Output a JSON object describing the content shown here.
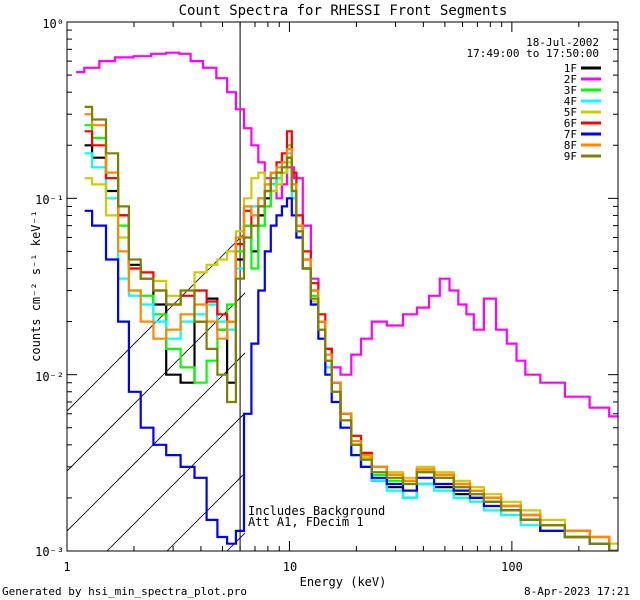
{
  "chart_data": {
    "type": "line",
    "title": "Count Spectra for RHESSI Front Segments",
    "xlabel": "Energy (keV)",
    "ylabel": "counts cm⁻² s⁻¹ keV⁻¹",
    "xscale": "log",
    "yscale": "log",
    "xlim": [
      1,
      300
    ],
    "ylim": [
      0.001,
      1
    ],
    "x_tick_labels": [
      "1",
      "10",
      "100"
    ],
    "y_tick_labels": [
      "10⁻³",
      "10⁻²",
      "10⁻¹",
      "10⁰"
    ],
    "legend_position": "top-right",
    "date": "18-Jul-2002",
    "time_range": "17:49:00 to 17:50:00",
    "annotations": [
      "Includes Background",
      "Att A1, FDecim 1"
    ],
    "hatched_region_max_energy": 6,
    "series": [
      {
        "name": "1F",
        "color": "#000000",
        "x": [
          1.2,
          1.4,
          1.6,
          1.8,
          2.0,
          2.3,
          2.6,
          3.0,
          3.5,
          4.0,
          4.5,
          5.0,
          5.5,
          6.0,
          6.5,
          7.0,
          7.5,
          8.0,
          8.5,
          9.0,
          9.5,
          10.0,
          10.5,
          11,
          12,
          13,
          14,
          15,
          16,
          18,
          20,
          22,
          25,
          30,
          35,
          40,
          50,
          60,
          70,
          80,
          100,
          120,
          150,
          200,
          250,
          300
        ],
        "y": [
          0.2,
          0.17,
          0.11,
          0.08,
          0.042,
          0.035,
          0.025,
          0.01,
          0.009,
          0.02,
          0.027,
          0.018,
          0.009,
          0.045,
          0.07,
          0.05,
          0.08,
          0.1,
          0.12,
          0.13,
          0.14,
          0.17,
          0.11,
          0.07,
          0.045,
          0.03,
          0.02,
          0.014,
          0.009,
          0.006,
          0.004,
          0.003,
          0.0025,
          0.0023,
          0.002,
          0.0024,
          0.0023,
          0.0021,
          0.002,
          0.0019,
          0.0017,
          0.0015,
          0.0013,
          0.0012,
          0.0011,
          0.001
        ]
      },
      {
        "name": "2F",
        "color": "#ff00ff",
        "x": [
          1.1,
          1.3,
          1.5,
          1.8,
          2.2,
          2.6,
          3.0,
          3.4,
          3.8,
          4.4,
          5.0,
          5.5,
          6.0,
          6.5,
          7.0,
          7.5,
          8.0,
          8.5,
          9.0,
          9.5,
          10.0,
          11,
          12,
          13,
          14,
          15,
          16,
          18,
          20,
          22,
          25,
          30,
          35,
          40,
          45,
          50,
          55,
          60,
          65,
          70,
          80,
          90,
          100,
          110,
          120,
          150,
          200,
          250,
          300
        ],
        "y": [
          0.52,
          0.55,
          0.6,
          0.63,
          0.64,
          0.66,
          0.67,
          0.66,
          0.6,
          0.55,
          0.48,
          0.4,
          0.32,
          0.25,
          0.2,
          0.16,
          0.13,
          0.11,
          0.1,
          0.12,
          0.15,
          0.13,
          0.07,
          0.035,
          0.02,
          0.014,
          0.011,
          0.01,
          0.013,
          0.016,
          0.02,
          0.019,
          0.022,
          0.024,
          0.028,
          0.035,
          0.03,
          0.025,
          0.022,
          0.018,
          0.027,
          0.018,
          0.015,
          0.012,
          0.01,
          0.009,
          0.0075,
          0.0065,
          0.0058
        ]
      },
      {
        "name": "3F",
        "color": "#00ff00",
        "x": [
          1.2,
          1.4,
          1.6,
          1.8,
          2.0,
          2.3,
          2.6,
          3.0,
          3.5,
          4.0,
          4.5,
          5.0,
          5.5,
          6.0,
          6.5,
          7.0,
          7.5,
          8.0,
          8.5,
          9.0,
          9.5,
          10.0,
          10.5,
          11,
          12,
          13,
          14,
          15,
          16,
          18,
          20,
          22,
          25,
          30,
          35,
          40,
          50,
          60,
          70,
          80,
          100,
          120,
          150,
          200,
          250,
          300
        ],
        "y": [
          0.26,
          0.22,
          0.13,
          0.07,
          0.03,
          0.028,
          0.022,
          0.014,
          0.011,
          0.009,
          0.012,
          0.018,
          0.025,
          0.05,
          0.07,
          0.04,
          0.07,
          0.09,
          0.11,
          0.13,
          0.15,
          0.2,
          0.12,
          0.07,
          0.04,
          0.028,
          0.018,
          0.012,
          0.008,
          0.006,
          0.004,
          0.0033,
          0.0027,
          0.0025,
          0.0024,
          0.0028,
          0.0026,
          0.0023,
          0.0021,
          0.002,
          0.0018,
          0.0016,
          0.0014,
          0.0013,
          0.0011,
          0.001
        ]
      },
      {
        "name": "4F",
        "color": "#00ffff",
        "x": [
          1.2,
          1.4,
          1.6,
          1.8,
          2.0,
          2.3,
          2.6,
          3.0,
          3.5,
          4.0,
          4.5,
          5.0,
          5.5,
          6.0,
          6.5,
          7.0,
          7.5,
          8.0,
          8.5,
          9.0,
          9.5,
          10.0,
          10.5,
          11,
          12,
          13,
          14,
          15,
          16,
          18,
          20,
          22,
          25,
          30,
          35,
          40,
          50,
          60,
          70,
          80,
          100,
          120,
          150,
          200,
          250,
          300
        ],
        "y": [
          0.18,
          0.15,
          0.1,
          0.035,
          0.028,
          0.025,
          0.02,
          0.016,
          0.02,
          0.022,
          0.025,
          0.02,
          0.018,
          0.04,
          0.06,
          0.09,
          0.1,
          0.11,
          0.12,
          0.13,
          0.14,
          0.18,
          0.1,
          0.06,
          0.04,
          0.025,
          0.016,
          0.011,
          0.008,
          0.005,
          0.0035,
          0.003,
          0.0025,
          0.0022,
          0.002,
          0.0024,
          0.0022,
          0.002,
          0.0019,
          0.0017,
          0.0016,
          0.0014,
          0.0013,
          0.0012,
          0.0011,
          0.001
        ]
      },
      {
        "name": "5F",
        "color": "#cccc00",
        "x": [
          1.2,
          1.4,
          1.6,
          1.8,
          2.0,
          2.3,
          2.6,
          3.0,
          3.5,
          4.0,
          4.5,
          5.0,
          5.5,
          6.0,
          6.5,
          7.0,
          7.5,
          8.0,
          8.5,
          9.0,
          9.5,
          10.0,
          10.5,
          11,
          12,
          13,
          14,
          15,
          16,
          18,
          20,
          22,
          25,
          30,
          35,
          40,
          50,
          60,
          70,
          80,
          100,
          120,
          150,
          200,
          250,
          300
        ],
        "y": [
          0.13,
          0.12,
          0.08,
          0.06,
          0.04,
          0.035,
          0.034,
          0.028,
          0.03,
          0.038,
          0.042,
          0.045,
          0.05,
          0.065,
          0.1,
          0.13,
          0.14,
          0.12,
          0.11,
          0.12,
          0.14,
          0.16,
          0.11,
          0.065,
          0.04,
          0.026,
          0.018,
          0.012,
          0.008,
          0.0055,
          0.004,
          0.0034,
          0.003,
          0.0028,
          0.0026,
          0.003,
          0.0028,
          0.0025,
          0.0023,
          0.0021,
          0.0019,
          0.0017,
          0.0015,
          0.0013,
          0.0012,
          0.0011
        ]
      },
      {
        "name": "6F",
        "color": "#ff0000",
        "x": [
          1.2,
          1.4,
          1.6,
          1.8,
          2.0,
          2.3,
          2.6,
          3.0,
          3.5,
          4.0,
          4.5,
          5.0,
          5.5,
          6.0,
          6.5,
          7.0,
          7.5,
          8.0,
          8.5,
          9.0,
          9.5,
          10.0,
          10.5,
          11,
          12,
          13,
          14,
          15,
          16,
          18,
          20,
          22,
          25,
          30,
          35,
          40,
          50,
          60,
          70,
          80,
          100,
          120,
          150,
          200,
          250,
          300
        ],
        "y": [
          0.24,
          0.2,
          0.13,
          0.08,
          0.04,
          0.038,
          0.03,
          0.025,
          0.028,
          0.03,
          0.026,
          0.022,
          0.02,
          0.055,
          0.085,
          0.07,
          0.09,
          0.11,
          0.14,
          0.16,
          0.18,
          0.24,
          0.14,
          0.08,
          0.05,
          0.033,
          0.022,
          0.014,
          0.009,
          0.006,
          0.0045,
          0.0036,
          0.003,
          0.0027,
          0.0025,
          0.0029,
          0.0027,
          0.0024,
          0.0022,
          0.002,
          0.0018,
          0.0016,
          0.0014,
          0.0013,
          0.0012,
          0.001
        ]
      },
      {
        "name": "7F",
        "color": "#0000ff",
        "x": [
          1.2,
          1.4,
          1.6,
          1.8,
          2.0,
          2.3,
          2.6,
          3.0,
          3.5,
          4.0,
          4.5,
          5.0,
          5.5,
          6.0,
          6.5,
          7.0,
          7.5,
          8.0,
          8.5,
          9.0,
          9.5,
          10.0,
          10.5,
          11,
          12,
          13,
          14,
          15,
          16,
          18,
          20,
          22,
          25,
          30,
          35,
          40,
          50,
          60,
          70,
          80,
          100,
          120,
          150,
          200,
          250,
          300
        ],
        "y": [
          0.085,
          0.07,
          0.045,
          0.02,
          0.008,
          0.005,
          0.004,
          0.0035,
          0.003,
          0.0026,
          0.0015,
          0.0012,
          0.0011,
          0.0013,
          0.006,
          0.015,
          0.03,
          0.05,
          0.07,
          0.08,
          0.09,
          0.1,
          0.08,
          0.06,
          0.04,
          0.025,
          0.016,
          0.01,
          0.007,
          0.005,
          0.0035,
          0.003,
          0.0026,
          0.0024,
          0.0022,
          0.0026,
          0.0024,
          0.0022,
          0.002,
          0.0018,
          0.0017,
          0.0015,
          0.0013,
          0.0012,
          0.0011,
          0.001
        ]
      },
      {
        "name": "8F",
        "color": "#ff8800",
        "x": [
          1.2,
          1.4,
          1.6,
          1.8,
          2.0,
          2.3,
          2.6,
          3.0,
          3.5,
          4.0,
          4.5,
          5.0,
          5.5,
          6.0,
          6.5,
          7.0,
          7.5,
          8.0,
          8.5,
          9.0,
          9.5,
          10.0,
          10.5,
          11,
          12,
          13,
          14,
          15,
          16,
          18,
          20,
          22,
          25,
          30,
          35,
          40,
          50,
          60,
          70,
          80,
          100,
          120,
          150,
          200,
          250,
          300
        ],
        "y": [
          0.3,
          0.26,
          0.14,
          0.05,
          0.03,
          0.02,
          0.016,
          0.018,
          0.022,
          0.025,
          0.02,
          0.016,
          0.02,
          0.06,
          0.09,
          0.08,
          0.1,
          0.12,
          0.14,
          0.15,
          0.16,
          0.19,
          0.12,
          0.07,
          0.045,
          0.03,
          0.02,
          0.013,
          0.009,
          0.006,
          0.0042,
          0.0035,
          0.003,
          0.0027,
          0.0025,
          0.0029,
          0.0027,
          0.0024,
          0.0022,
          0.002,
          0.0018,
          0.0016,
          0.0014,
          0.0013,
          0.0012,
          0.001
        ]
      },
      {
        "name": "9F",
        "color": "#808000",
        "x": [
          1.2,
          1.4,
          1.6,
          1.8,
          2.0,
          2.3,
          2.6,
          3.0,
          3.5,
          4.0,
          4.5,
          5.0,
          5.5,
          6.0,
          6.5,
          7.0,
          7.5,
          8.0,
          8.5,
          9.0,
          9.5,
          10.0,
          10.5,
          11,
          12,
          13,
          14,
          15,
          16,
          18,
          20,
          22,
          25,
          30,
          35,
          40,
          50,
          60,
          70,
          80,
          100,
          120,
          150,
          200,
          250,
          300
        ],
        "y": [
          0.33,
          0.28,
          0.18,
          0.09,
          0.045,
          0.035,
          0.03,
          0.025,
          0.03,
          0.02,
          0.014,
          0.01,
          0.007,
          0.035,
          0.06,
          0.07,
          0.09,
          0.11,
          0.13,
          0.14,
          0.15,
          0.17,
          0.11,
          0.065,
          0.04,
          0.027,
          0.018,
          0.012,
          0.008,
          0.0055,
          0.004,
          0.0033,
          0.0028,
          0.0026,
          0.0024,
          0.0028,
          0.0026,
          0.0023,
          0.0021,
          0.0019,
          0.0017,
          0.0015,
          0.0014,
          0.0012,
          0.0011,
          0.001
        ]
      }
    ]
  },
  "footer": {
    "generated_by": "Generated by hsi_min_spectra_plot.pro",
    "timestamp": "8-Apr-2023 17:21"
  }
}
